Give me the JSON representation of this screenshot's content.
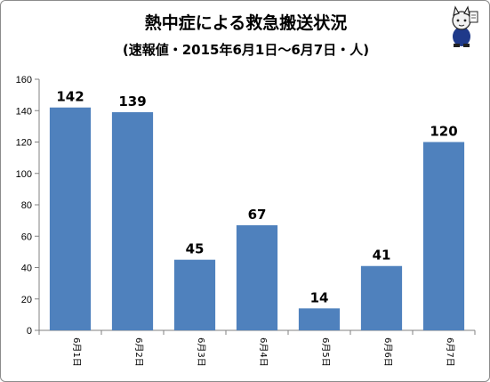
{
  "chart_data": {
    "type": "bar",
    "title": "熱中症による救急搬送状況",
    "subtitle": "(速報値・2015年6月1日～6月7日・人)",
    "categories": [
      "6月1日",
      "6月2日",
      "6月3日",
      "6月4日",
      "6月5日",
      "6月6日",
      "6月7日"
    ],
    "values": [
      142,
      139,
      45,
      67,
      14,
      41,
      120
    ],
    "ylim": [
      0,
      160
    ],
    "yticks": [
      0,
      20,
      40,
      60,
      80,
      100,
      120,
      140,
      160
    ],
    "grid": false,
    "legend": "none",
    "bar_color": "#4f81bd"
  },
  "decor": {
    "mascot_icon": "cat-mascot-icon"
  }
}
